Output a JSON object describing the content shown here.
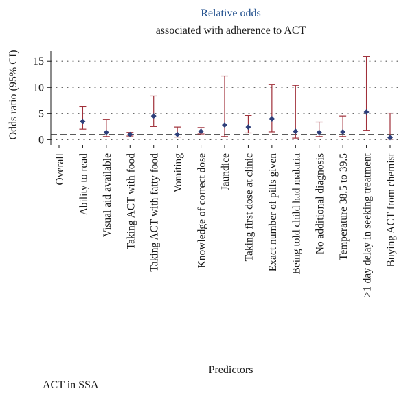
{
  "chart_data": {
    "type": "scatter",
    "title": "Relative odds",
    "subtitle": "associated with adherence to ACT",
    "xlabel": "Predictors",
    "ylabel": "Odds ratio (95% CI)",
    "ylim": [
      -1,
      17
    ],
    "yticks": [
      0,
      5,
      10,
      15
    ],
    "reference_line": 1,
    "grid": true,
    "categories": [
      "Overall",
      "Ability to read",
      "Visual aid available",
      "Taking ACT with food",
      "Taking ACT with fatty food",
      "Vomiting",
      "Knowledge of correct dose",
      "Jaundice",
      "Taking first dose at clinic",
      "Exact number of pills given",
      "Being told child had malaria",
      "No additional diagnosis",
      "Temperature 38.5 to 39.5",
      ">1 day delay in seeking treatment",
      "Buying ACT from chemist"
    ],
    "series": [
      {
        "estimate": [
          null,
          3.5,
          1.4,
          1.0,
          4.5,
          1.0,
          1.6,
          2.8,
          2.4,
          4.0,
          1.6,
          1.4,
          1.5,
          5.3,
          0.4
        ],
        "ci_lower": [
          null,
          2.0,
          0.6,
          0.7,
          2.5,
          0.5,
          1.1,
          0.6,
          1.3,
          1.5,
          0.3,
          0.6,
          0.6,
          1.8,
          0.1
        ],
        "ci_upper": [
          null,
          6.3,
          3.9,
          1.4,
          8.4,
          2.4,
          2.3,
          12.2,
          4.6,
          10.6,
          10.4,
          3.4,
          4.5,
          15.9,
          5.1
        ]
      }
    ],
    "colors": {
      "marker": "#2e3f7a",
      "ci": "#a0303a",
      "reference": "#444444",
      "grid": "#555555"
    }
  },
  "footnote": "ACT in SSA"
}
